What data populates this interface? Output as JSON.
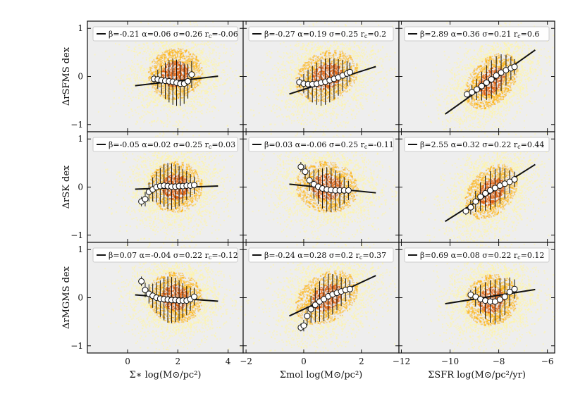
{
  "colors": {
    "density_low": "#fff6a0",
    "density_mid": "#ffb000",
    "density_high": "#e05a00",
    "fit_line": "#111111",
    "marker_face": "#ffffff",
    "empty_region": "#eeeeee"
  },
  "chart_data": [
    {
      "type": "scatter",
      "panel": "row1-col1",
      "ylabel": "ΔrSFMS dex",
      "xlabel": "",
      "xlim": [
        -1.6,
        4.6
      ],
      "ylim": [
        -1.15,
        1.15
      ],
      "xticks": [],
      "yticks": [
        "−1",
        "0",
        "1"
      ],
      "density_center": [
        1.9,
        0.05
      ],
      "density_spread": [
        0.8,
        0.45
      ],
      "fit": {
        "beta": -0.21,
        "alpha": 0.06,
        "sigma": 0.26,
        "rc": -0.06,
        "x_range": [
          0.3,
          3.6
        ]
      },
      "legend_text": "β=-0.21 α=0.06 σ=0.26 r",
      "legend_sub": "c",
      "legend_tail": "=-0.06",
      "binned": {
        "x": [
          1.05,
          1.2,
          1.35,
          1.5,
          1.65,
          1.8,
          1.95,
          2.1,
          2.25,
          2.4,
          2.55
        ],
        "y": [
          -0.05,
          -0.06,
          -0.08,
          -0.09,
          -0.1,
          -0.11,
          -0.13,
          -0.15,
          -0.15,
          -0.1,
          0.04
        ],
        "err": [
          0.1,
          0.2,
          0.3,
          0.38,
          0.44,
          0.48,
          0.48,
          0.46,
          0.42,
          0.36,
          0.28
        ]
      }
    },
    {
      "type": "scatter",
      "panel": "row1-col2",
      "ylabel": "",
      "xlabel": "",
      "xlim": [
        -2.1,
        3.3
      ],
      "ylim": [
        -1.15,
        1.15
      ],
      "xticks": [],
      "yticks": [],
      "density_center": [
        0.8,
        0.0
      ],
      "density_spread": [
        0.8,
        0.45
      ],
      "fit": {
        "beta": -0.27,
        "alpha": 0.19,
        "sigma": 0.25,
        "rc": 0.2,
        "x_range": [
          -0.5,
          2.5
        ]
      },
      "legend_text": "β=-0.27 α=0.19 σ=0.25 r",
      "legend_sub": "c",
      "legend_tail": "=0.2",
      "binned": {
        "x": [
          -0.15,
          0.0,
          0.15,
          0.3,
          0.45,
          0.6,
          0.75,
          0.9,
          1.05,
          1.2,
          1.35,
          1.5,
          1.6
        ],
        "y": [
          -0.12,
          -0.15,
          -0.16,
          -0.16,
          -0.15,
          -0.13,
          -0.11,
          -0.08,
          -0.05,
          -0.02,
          0.02,
          0.06,
          0.09
        ],
        "err": [
          0.1,
          0.2,
          0.3,
          0.38,
          0.44,
          0.48,
          0.48,
          0.46,
          0.42,
          0.38,
          0.32,
          0.26,
          0.2
        ]
      }
    },
    {
      "type": "scatter",
      "panel": "row1-col3",
      "ylabel": "",
      "xlabel": "",
      "xlim": [
        -12.1,
        -5.7
      ],
      "ylim": [
        -1.15,
        1.15
      ],
      "xticks": [],
      "yticks": [],
      "density_center": [
        -8.3,
        -0.1
      ],
      "density_spread": [
        0.8,
        0.45
      ],
      "fit": {
        "beta": 2.89,
        "alpha": 0.36,
        "sigma": 0.21,
        "rc": 0.6,
        "x_range": [
          -10.2,
          -6.5
        ]
      },
      "legend_text": "β=2.89 α=0.36 σ=0.21 r",
      "legend_sub": "c",
      "legend_tail": "=0.6",
      "binned": {
        "x": [
          -9.3,
          -9.1,
          -8.9,
          -8.7,
          -8.5,
          -8.3,
          -8.1,
          -7.9,
          -7.7,
          -7.5,
          -7.35
        ],
        "y": [
          -0.37,
          -0.33,
          -0.27,
          -0.2,
          -0.13,
          -0.06,
          0.02,
          0.08,
          0.13,
          0.17,
          0.2
        ],
        "err": [
          0.08,
          0.15,
          0.22,
          0.3,
          0.36,
          0.4,
          0.4,
          0.38,
          0.32,
          0.24,
          0.16
        ]
      }
    },
    {
      "type": "scatter",
      "panel": "row2-col1",
      "ylabel": "ΔrSK dex",
      "xlabel": "",
      "xlim": [
        -1.6,
        4.6
      ],
      "ylim": [
        -1.15,
        1.15
      ],
      "xticks": [],
      "yticks": [
        "−1",
        "0",
        "1"
      ],
      "density_center": [
        1.9,
        0.0
      ],
      "density_spread": [
        0.8,
        0.45
      ],
      "fit": {
        "beta": -0.05,
        "alpha": 0.02,
        "sigma": 0.25,
        "rc": 0.03,
        "x_range": [
          0.3,
          3.6
        ]
      },
      "legend_text": "β=-0.05 α=0.02 σ=0.25 r",
      "legend_sub": "c",
      "legend_tail": "=0.03",
      "binned": {
        "x": [
          0.55,
          0.7,
          0.85,
          1.0,
          1.15,
          1.3,
          1.45,
          1.6,
          1.75,
          1.9,
          2.05,
          2.2,
          2.35,
          2.5,
          2.65
        ],
        "y": [
          -0.3,
          -0.25,
          -0.1,
          -0.05,
          0.0,
          0.02,
          0.03,
          0.02,
          0.01,
          0.01,
          0.02,
          0.02,
          0.03,
          0.03,
          0.04
        ],
        "err": [
          0.1,
          0.15,
          0.2,
          0.25,
          0.32,
          0.38,
          0.44,
          0.48,
          0.48,
          0.46,
          0.42,
          0.36,
          0.3,
          0.24,
          0.18
        ]
      }
    },
    {
      "type": "scatter",
      "panel": "row2-col2",
      "ylabel": "",
      "xlabel": "",
      "xlim": [
        -2.1,
        3.3
      ],
      "ylim": [
        -1.15,
        1.15
      ],
      "xticks": [],
      "yticks": [],
      "density_center": [
        0.8,
        0.0
      ],
      "density_spread": [
        0.8,
        0.45
      ],
      "fit": {
        "beta": 0.03,
        "alpha": -0.06,
        "sigma": 0.25,
        "rc": -0.11,
        "x_range": [
          -0.5,
          2.5
        ]
      },
      "legend_text": "β=0.03 α=-0.06 σ=0.25 r",
      "legend_sub": "c",
      "legend_tail": "=-0.11",
      "binned": {
        "x": [
          -0.1,
          0.05,
          0.2,
          0.35,
          0.5,
          0.65,
          0.8,
          0.95,
          1.1,
          1.25,
          1.4,
          1.55
        ],
        "y": [
          0.42,
          0.32,
          0.14,
          0.06,
          0.01,
          -0.03,
          -0.05,
          -0.06,
          -0.07,
          -0.07,
          -0.07,
          -0.07
        ],
        "err": [
          0.1,
          0.15,
          0.22,
          0.3,
          0.36,
          0.42,
          0.46,
          0.46,
          0.42,
          0.36,
          0.28,
          0.2
        ]
      }
    },
    {
      "type": "scatter",
      "panel": "row2-col3",
      "ylabel": "",
      "xlabel": "",
      "xlim": [
        -12.1,
        -5.7
      ],
      "ylim": [
        -1.15,
        1.15
      ],
      "xticks": [],
      "yticks": [],
      "density_center": [
        -8.3,
        -0.1
      ],
      "density_spread": [
        0.8,
        0.45
      ],
      "fit": {
        "beta": 2.55,
        "alpha": 0.32,
        "sigma": 0.22,
        "rc": 0.44,
        "x_range": [
          -10.2,
          -6.5
        ]
      },
      "legend_text": "β=2.55 α=0.32 σ=0.22 r",
      "legend_sub": "c",
      "legend_tail": "=0.44",
      "binned": {
        "x": [
          -9.35,
          -9.15,
          -8.95,
          -8.75,
          -8.55,
          -8.35,
          -8.15,
          -7.95,
          -7.75,
          -7.55,
          -7.35
        ],
        "y": [
          -0.5,
          -0.42,
          -0.3,
          -0.2,
          -0.13,
          -0.07,
          -0.02,
          0.03,
          0.07,
          0.11,
          0.16
        ],
        "err": [
          0.08,
          0.15,
          0.22,
          0.3,
          0.36,
          0.4,
          0.4,
          0.38,
          0.32,
          0.24,
          0.16
        ]
      }
    },
    {
      "type": "scatter",
      "panel": "row3-col1",
      "ylabel": "ΔrMGMS dex",
      "xlabel": "Σ∗ log(M⊙/pc²)",
      "xlim": [
        -1.6,
        4.6
      ],
      "ylim": [
        -1.15,
        1.15
      ],
      "xticks": [
        "0",
        "2",
        "4"
      ],
      "yticks": [
        "−1",
        "0",
        "1"
      ],
      "density_center": [
        1.9,
        0.0
      ],
      "density_spread": [
        0.8,
        0.45
      ],
      "fit": {
        "beta": 0.07,
        "alpha": -0.04,
        "sigma": 0.22,
        "rc": -0.12,
        "x_range": [
          0.3,
          3.6
        ]
      },
      "legend_text": "β=0.07 α=-0.04 σ=0.22 r",
      "legend_sub": "c",
      "legend_tail": "=-0.12",
      "binned": {
        "x": [
          0.55,
          0.7,
          0.85,
          1.0,
          1.15,
          1.3,
          1.45,
          1.6,
          1.75,
          1.9,
          2.05,
          2.2,
          2.35,
          2.5,
          2.65
        ],
        "y": [
          0.34,
          0.16,
          0.08,
          0.04,
          0.0,
          -0.02,
          -0.03,
          -0.04,
          -0.05,
          -0.05,
          -0.06,
          -0.06,
          -0.06,
          -0.03,
          0.02
        ],
        "err": [
          0.1,
          0.15,
          0.2,
          0.25,
          0.32,
          0.38,
          0.44,
          0.48,
          0.48,
          0.46,
          0.42,
          0.36,
          0.3,
          0.24,
          0.18
        ]
      }
    },
    {
      "type": "scatter",
      "panel": "row3-col2",
      "ylabel": "",
      "xlabel": "Σmol log(M⊙/pc²)",
      "xlim": [
        -2.1,
        3.3
      ],
      "ylim": [
        -1.15,
        1.15
      ],
      "xticks": [
        "−2",
        "0",
        "2"
      ],
      "yticks": [],
      "density_center": [
        0.8,
        0.0
      ],
      "density_spread": [
        0.8,
        0.45
      ],
      "fit": {
        "beta": -0.24,
        "alpha": 0.28,
        "sigma": 0.2,
        "rc": 0.37,
        "x_range": [
          -0.5,
          2.5
        ]
      },
      "legend_text": "β=-0.24 α=0.28 σ=0.2 r",
      "legend_sub": "c",
      "legend_tail": "=0.37",
      "binned": {
        "x": [
          -0.1,
          0.0,
          0.12,
          0.25,
          0.4,
          0.55,
          0.7,
          0.85,
          1.0,
          1.15,
          1.3,
          1.45,
          1.6
        ],
        "y": [
          -0.62,
          -0.58,
          -0.38,
          -0.24,
          -0.15,
          -0.08,
          -0.03,
          0.03,
          0.07,
          0.1,
          0.13,
          0.16,
          0.18
        ],
        "err": [
          0.08,
          0.12,
          0.2,
          0.28,
          0.36,
          0.42,
          0.46,
          0.46,
          0.42,
          0.36,
          0.3,
          0.24,
          0.18
        ]
      }
    },
    {
      "type": "scatter",
      "panel": "row3-col3",
      "ylabel": "",
      "xlabel": "ΣSFR log(M⊙/pc²/yr)",
      "xlim": [
        -12.1,
        -5.7
      ],
      "ylim": [
        -1.15,
        1.15
      ],
      "xticks": [
        "−12",
        "−10",
        "−8",
        "−6"
      ],
      "yticks": [],
      "density_center": [
        -8.3,
        -0.05
      ],
      "density_spread": [
        0.8,
        0.45
      ],
      "fit": {
        "beta": 0.69,
        "alpha": 0.08,
        "sigma": 0.22,
        "rc": 0.12,
        "x_range": [
          -10.2,
          -6.5
        ]
      },
      "legend_text": "β=0.69 α=0.08 σ=0.22 r",
      "legend_sub": "c",
      "legend_tail": "=0.12",
      "binned": {
        "x": [
          -9.15,
          -8.95,
          -8.75,
          -8.55,
          -8.35,
          -8.15,
          -7.95,
          -7.75,
          -7.55,
          -7.35
        ],
        "y": [
          0.06,
          0.02,
          -0.03,
          -0.06,
          -0.08,
          -0.08,
          -0.04,
          0.02,
          0.12,
          0.18
        ],
        "err": [
          0.1,
          0.2,
          0.3,
          0.38,
          0.44,
          0.46,
          0.44,
          0.38,
          0.3,
          0.2
        ]
      }
    }
  ]
}
